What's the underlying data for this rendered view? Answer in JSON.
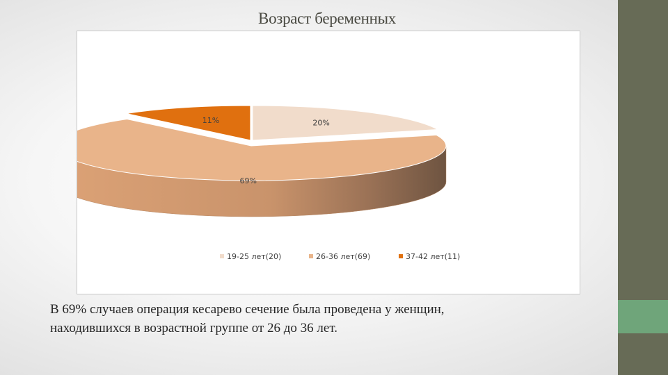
{
  "slide": {
    "title": "Возраст беременных",
    "caption_line1": " В 69% случаев операция кесарево сечение была проведена у женщин,",
    "caption_line2": "находившихся в возрастной группе от 26 до 36 лет."
  },
  "colors": {
    "sidebar": "#676b56",
    "sidebar_accent": "#6fa57a"
  },
  "chart_data": {
    "type": "pie",
    "style": "3d",
    "legend_position": "bottom",
    "slices": [
      {
        "label": "19-25 лет(20)",
        "value": 20,
        "data_label": "20%",
        "color": "#f1dccb"
      },
      {
        "label": "26-36 лет(69)",
        "value": 69,
        "data_label": "69%",
        "color": "#e9b48a"
      },
      {
        "label": "37-42 лет(11)",
        "value": 11,
        "data_label": "11%",
        "color": "#e0700f"
      }
    ]
  }
}
